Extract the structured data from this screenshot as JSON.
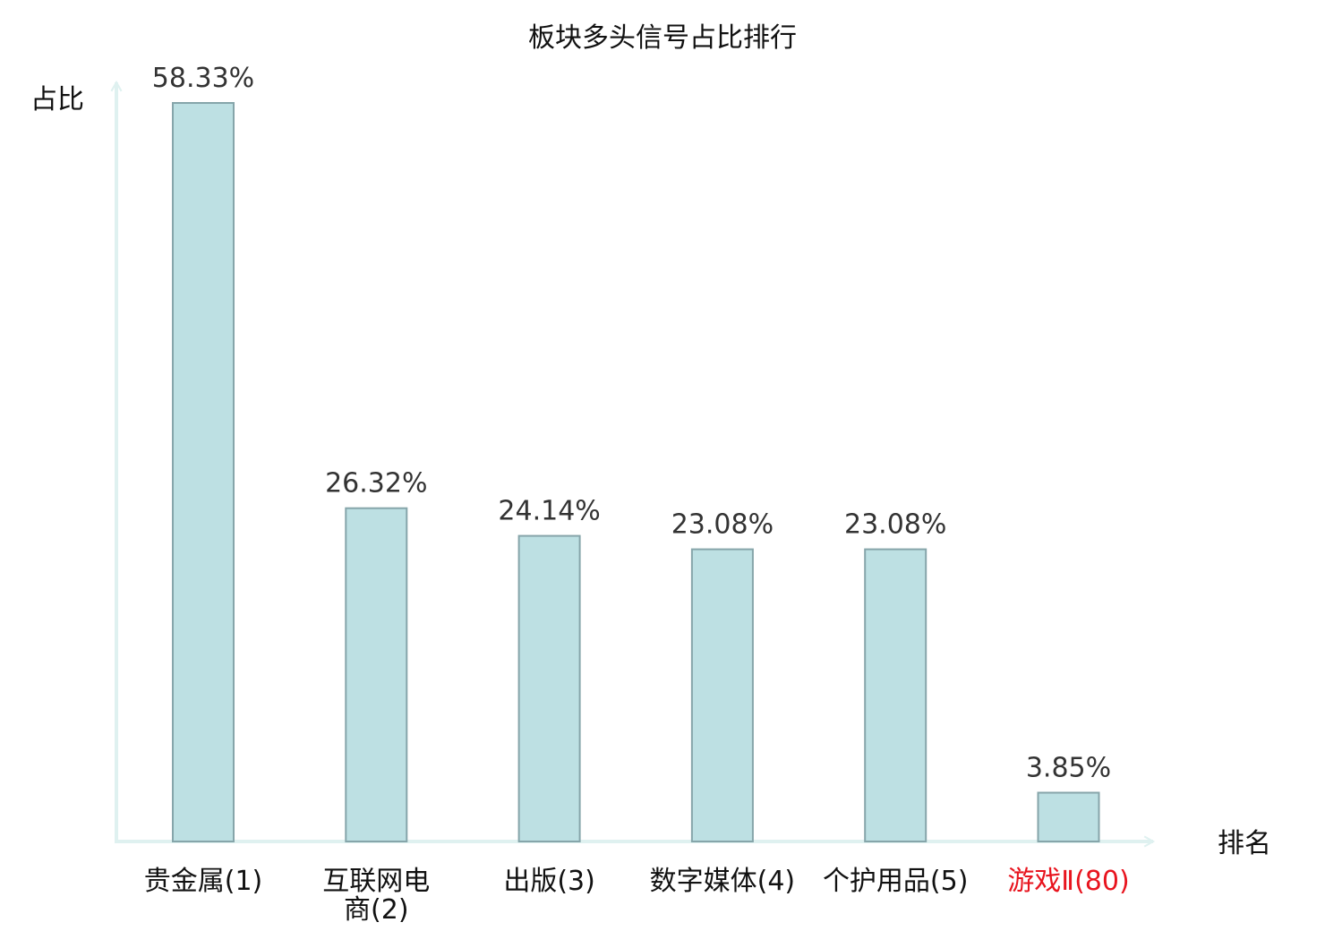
{
  "chart_data": {
    "type": "bar",
    "title": "板块多头信号占比排行",
    "xlabel": "排名",
    "ylabel": "占比",
    "categories": [
      [
        "贵金属(1)"
      ],
      [
        "互联网电",
        "商(2)"
      ],
      [
        "出版(3)"
      ],
      [
        "数字媒体(4)"
      ],
      [
        "个护用品(5)"
      ],
      [
        "游戏Ⅱ(80)"
      ]
    ],
    "values": [
      58.33,
      26.32,
      24.14,
      23.08,
      23.08,
      3.85
    ],
    "value_labels": [
      "58.33%",
      "26.32%",
      "24.14%",
      "23.08%",
      "23.08%",
      "3.85%"
    ],
    "highlighted_index": 5,
    "grid": false,
    "colors": {
      "bar_fill": "#bde0e3",
      "bar_stroke": "#86a5aa",
      "axis": "#dff1f0",
      "text": "#111111",
      "value_text": "#333333",
      "highlight": "#e8141e"
    }
  }
}
